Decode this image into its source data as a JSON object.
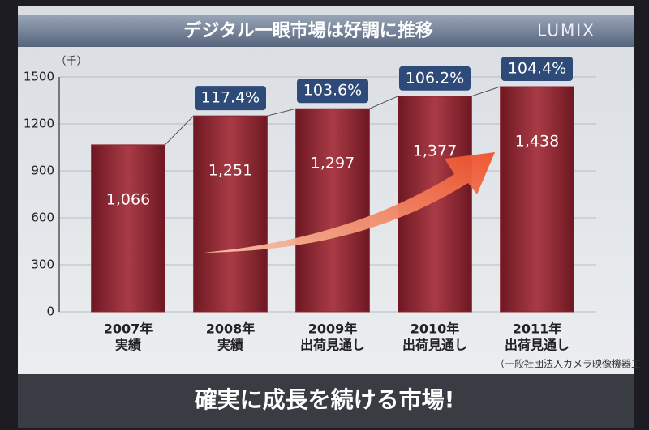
{
  "chart_data": {
    "type": "bar",
    "title": "デジタル一眼市場は好調に推移",
    "brand": "LUMIX",
    "unit": "（千）",
    "categories": [
      "2007年",
      "2008年",
      "2009年",
      "2010年",
      "2011年"
    ],
    "sublabels": [
      "実績",
      "実績",
      "出荷見通し",
      "出荷見通し",
      "出荷見通し"
    ],
    "values": [
      1066,
      1251,
      1297,
      1377,
      1438
    ],
    "value_labels": [
      "1,066",
      "1,251",
      "1,297",
      "1,377",
      "1,438"
    ],
    "annotations": [
      null,
      "117.4%",
      "103.6%",
      "106.2%",
      "104.4%"
    ],
    "color": "#8e2430",
    "ylim": [
      0,
      1500
    ],
    "yticks": [
      0,
      300,
      600,
      900,
      1200,
      1500
    ],
    "grid": true,
    "source": "（一般社団法人カメラ映像機器工",
    "footer": "確実に成長を続ける市場!"
  }
}
